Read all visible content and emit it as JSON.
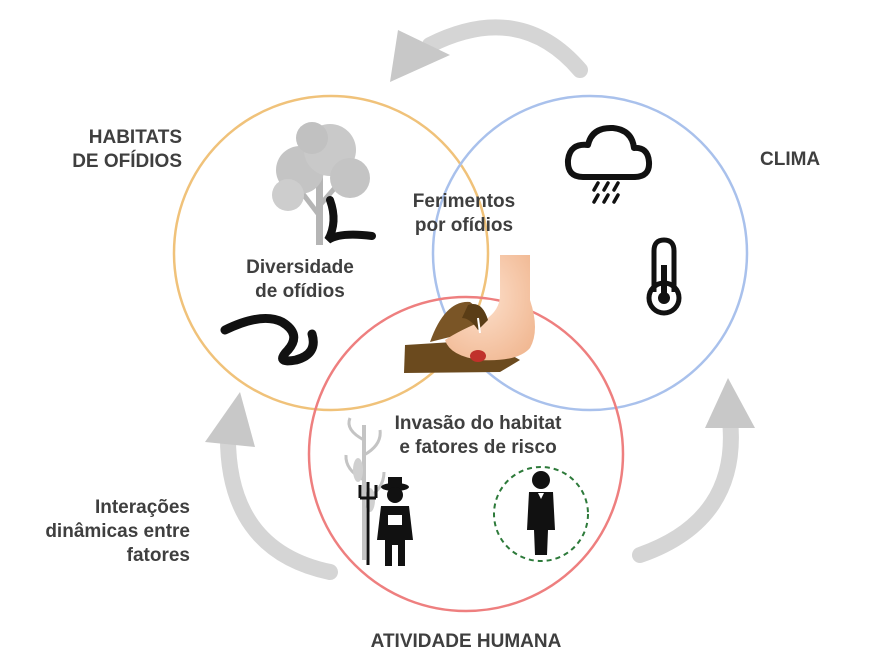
{
  "diagram": {
    "habitats": {
      "line1": "HABITATS",
      "line2": "DE OFÍDIOS"
    },
    "clima": "CLIMA",
    "atividade_humana": "ATIVIDADE HUMANA",
    "interacoes": {
      "line1": "Interações",
      "line2": "dinâmicas entre",
      "line3": "fatores"
    },
    "ferimentos": {
      "line1": "Ferimentos",
      "line2": "por ofídios"
    },
    "diversidade": {
      "line1": "Diversidade",
      "line2": "de ofídios"
    },
    "invasao": {
      "line1": "Invasão do habitat",
      "line2": "e fatores de risco"
    }
  },
  "colors": {
    "habitats_circle": "#f0c27a",
    "clima_circle": "#a9c1ec",
    "atividade_circle": "#ee7f7f",
    "arrow": "#d0d0d0",
    "text": "#3f3f3f",
    "foot": "#f5c8a8",
    "branch": "#6b4a1e"
  },
  "icons": [
    "tree-icon",
    "snake-icon",
    "rain-cloud-icon",
    "thermometer-icon",
    "foot-icon",
    "branch-icon",
    "corn-icon",
    "farmer-icon",
    "businessman-icon"
  ]
}
